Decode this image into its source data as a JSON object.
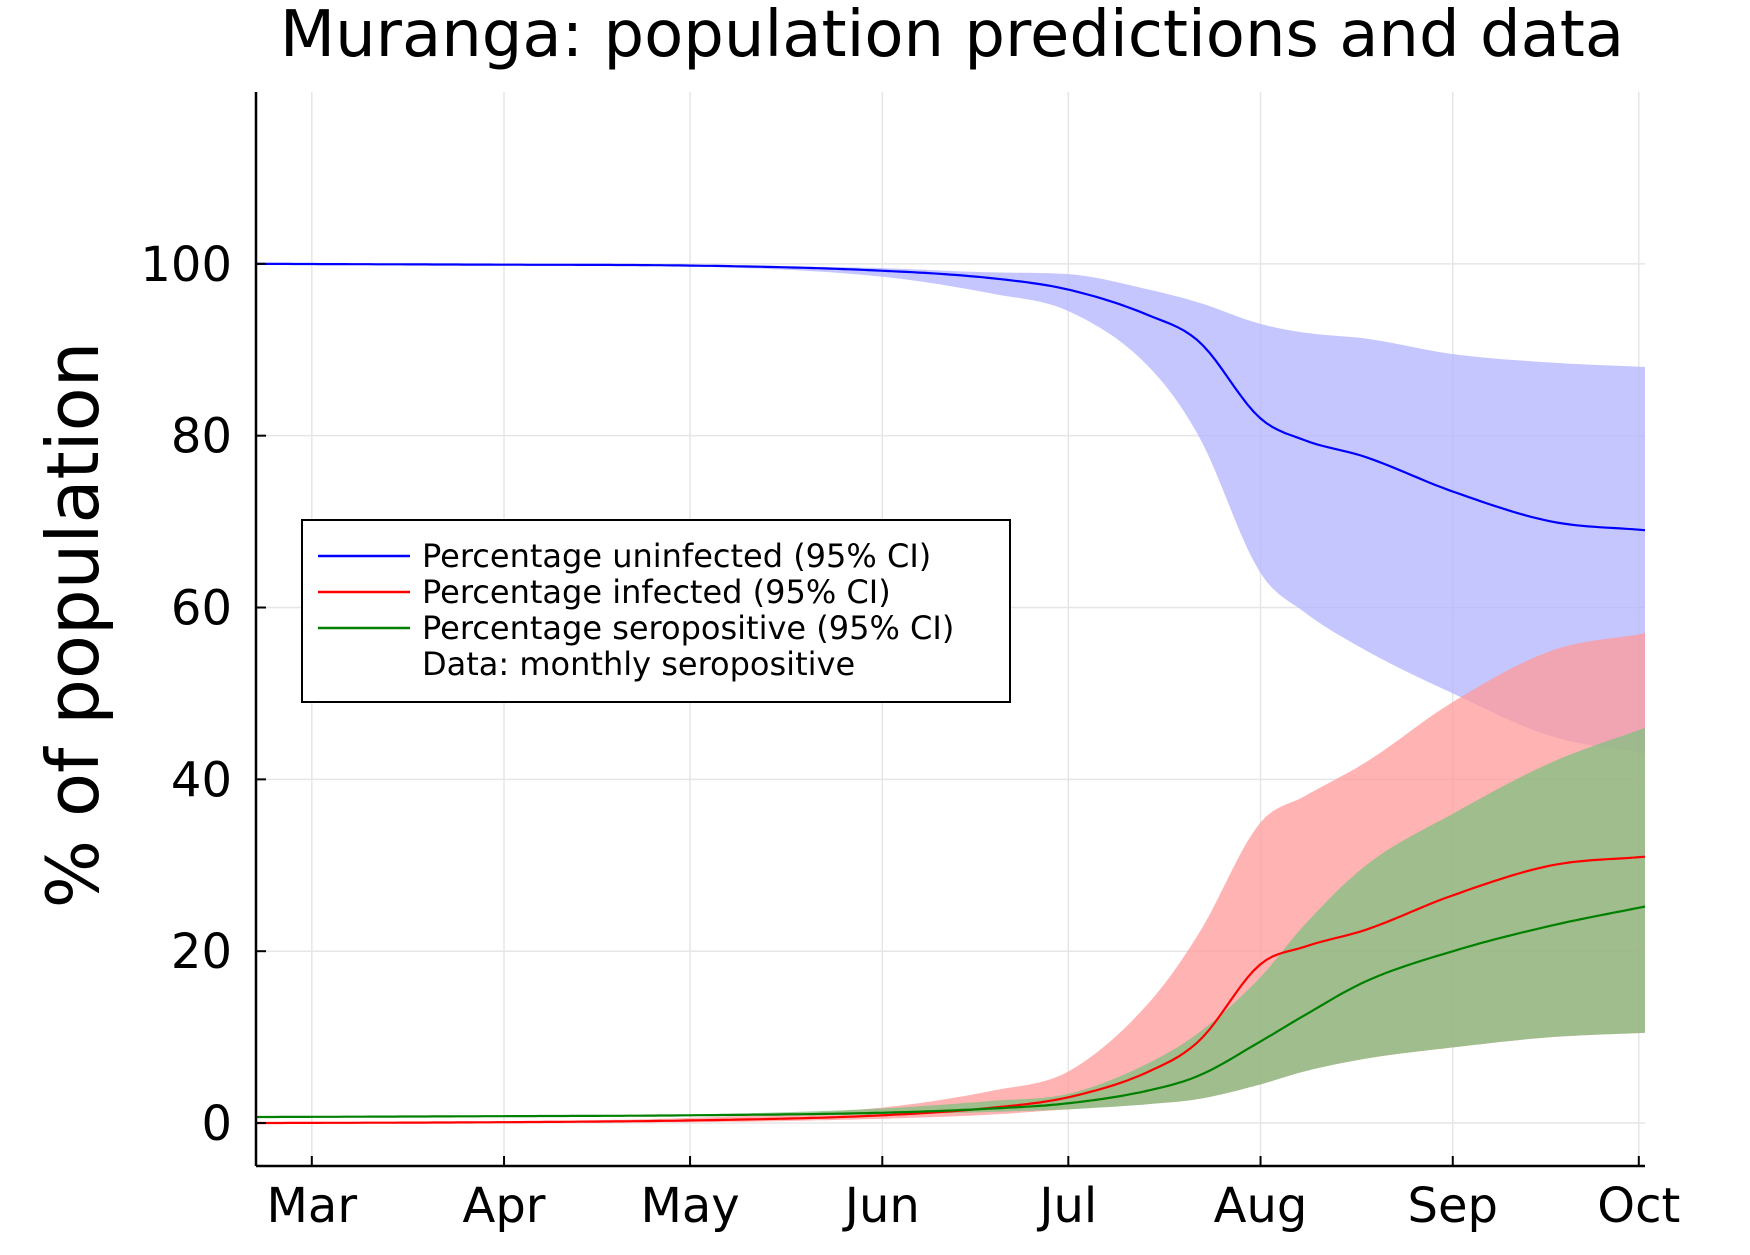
{
  "chart_data": {
    "type": "line",
    "title": "Muranga: population predictions and data",
    "xlabel": "",
    "ylabel": "% of population",
    "x_tick_labels": [
      "Mar",
      "Apr",
      "May",
      "Jun",
      "Jul",
      "Aug",
      "Sep",
      "Oct"
    ],
    "x_tick_days": [
      0,
      31,
      61,
      92,
      122,
      153,
      184,
      214
    ],
    "x_range_days": [
      -9,
      215
    ],
    "y_ticks": [
      0,
      20,
      40,
      60,
      80,
      100
    ],
    "ylim": [
      -5,
      120
    ],
    "grid": true,
    "legend_position": "left-middle",
    "legend": [
      {
        "label": "Percentage uninfected (95% CI)",
        "color": "#0000ff"
      },
      {
        "label": "Percentage infected (95% CI)",
        "color": "#ff0000"
      },
      {
        "label": "Percentage seropositive (95% CI)",
        "color": "#008000"
      },
      {
        "label": "Data: monthly seropositive",
        "color": ""
      }
    ],
    "series": [
      {
        "name": "Percentage uninfected (95% CI)",
        "color": "#0000ff",
        "band_color": "#b3b3ff",
        "x": [
          -9,
          31,
          61,
          92,
          110,
          122,
          135,
          143,
          153,
          160,
          170,
          184,
          200,
          215
        ],
        "y": [
          100,
          99.9,
          99.8,
          99.2,
          98.3,
          97,
          94,
          91,
          82,
          79.5,
          77.5,
          73.5,
          70,
          69
        ],
        "lower": [
          100,
          99.9,
          99.7,
          98.5,
          96.5,
          94.5,
          88,
          80,
          64,
          59.5,
          55,
          50,
          45,
          43
        ],
        "upper": [
          100,
          99.9,
          99.8,
          99.5,
          99,
          98.8,
          97,
          95.5,
          93,
          92,
          91.3,
          89.5,
          88.5,
          88
        ]
      },
      {
        "name": "Percentage infected (95% CI)",
        "color": "#ff0000",
        "band_color": "#ff9999",
        "x": [
          -9,
          31,
          61,
          92,
          110,
          122,
          135,
          143,
          153,
          160,
          170,
          184,
          200,
          215
        ],
        "y": [
          0,
          0.1,
          0.3,
          0.9,
          1.8,
          3,
          6,
          9.5,
          18.5,
          20.5,
          22.5,
          26.5,
          30,
          31
        ],
        "lower": [
          0,
          0.05,
          0.1,
          0.5,
          1.0,
          1.6,
          2.2,
          2.8,
          4.5,
          6,
          7.5,
          8.8,
          10,
          10.5
        ],
        "upper": [
          0,
          0.2,
          0.6,
          1.8,
          3.8,
          6,
          14,
          22,
          35,
          38,
          42,
          49,
          55,
          57
        ]
      },
      {
        "name": "Percentage seropositive (95% CI)",
        "color": "#008000",
        "band_color": "#80c080",
        "x": [
          -9,
          31,
          61,
          92,
          110,
          122,
          135,
          143,
          153,
          160,
          170,
          184,
          200,
          215
        ],
        "y": [
          0.7,
          0.8,
          0.9,
          1.2,
          1.7,
          2.3,
          3.8,
          5.5,
          9.5,
          12.5,
          16.5,
          20,
          23,
          25.2
        ],
        "lower": [
          0.7,
          0.75,
          0.85,
          1.0,
          1.3,
          1.6,
          2.2,
          2.8,
          4.5,
          6,
          7.5,
          8.8,
          10,
          10.5
        ],
        "upper": [
          0.7,
          0.85,
          1.0,
          1.7,
          2.6,
          3.4,
          7,
          10.5,
          17,
          23,
          30,
          36,
          42,
          46
        ]
      }
    ]
  }
}
